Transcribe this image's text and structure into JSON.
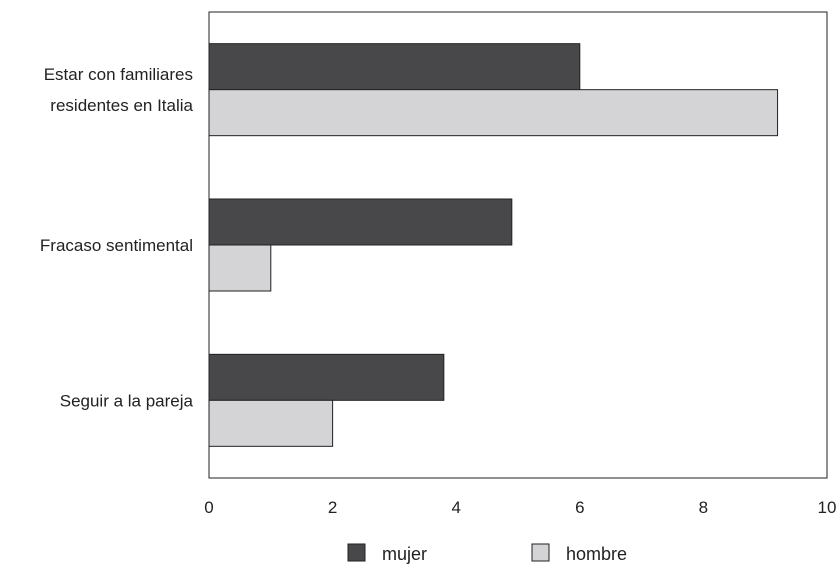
{
  "chart_data": {
    "type": "bar",
    "orientation": "horizontal",
    "categories": [
      [
        "Estar con familiares",
        "residentes en Italia"
      ],
      [
        "Fracaso sentimental"
      ],
      [
        "Seguir a la pareja"
      ]
    ],
    "series": [
      {
        "name": "mujer",
        "values": [
          6.0,
          4.9,
          3.8
        ],
        "color": "#48484a"
      },
      {
        "name": "hombre",
        "values": [
          9.2,
          1.0,
          2.0
        ],
        "color": "#d4d4d6"
      }
    ],
    "xlim": [
      0,
      10
    ],
    "xticks": [
      "0",
      "2",
      "4",
      "6",
      "8",
      "10"
    ],
    "grid": false,
    "legend": "bottom"
  }
}
